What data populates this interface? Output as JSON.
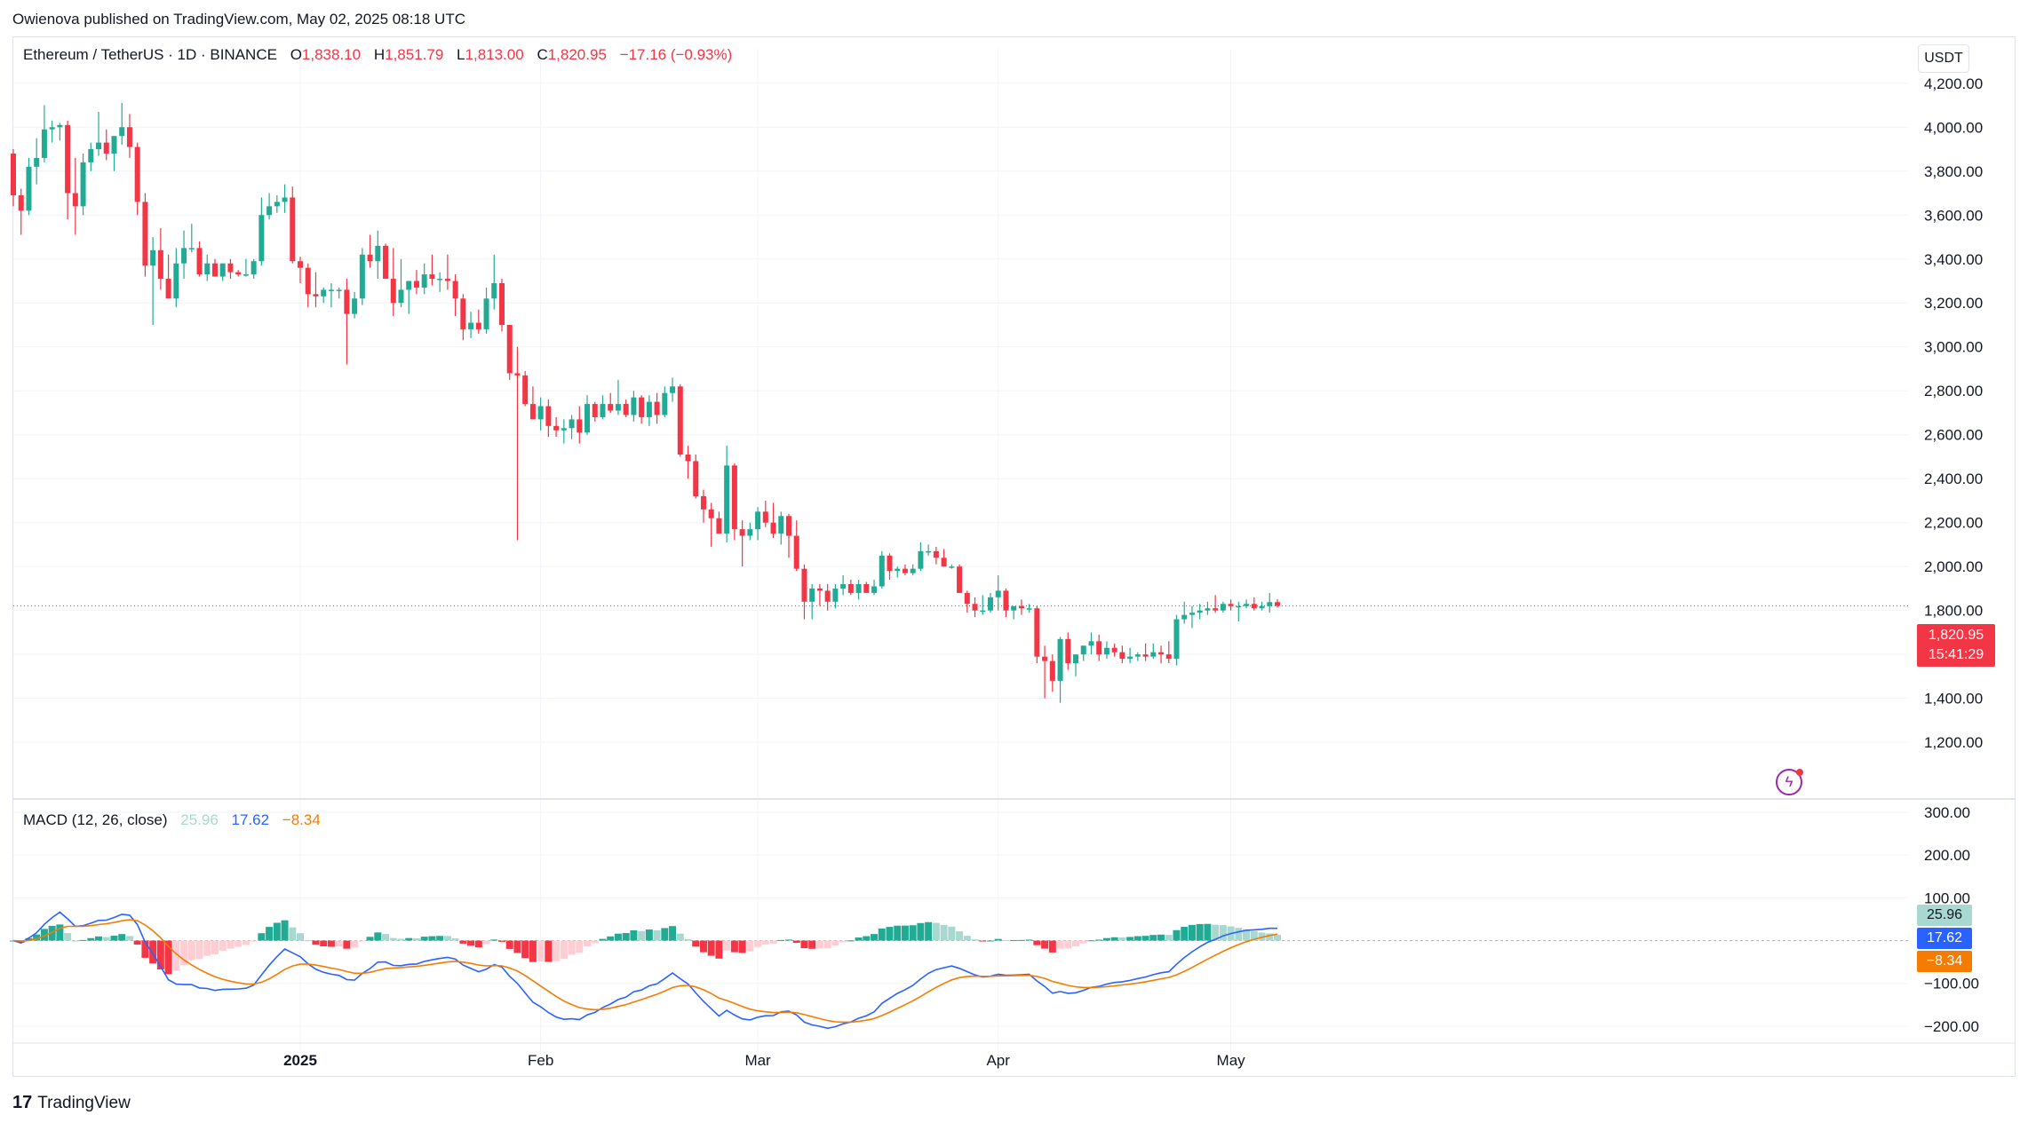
{
  "header": {
    "published": "Owienova published on TradingView.com, May 02, 2025 08:18 UTC"
  },
  "legend": {
    "symbol": "Ethereum / TetherUS · 1D · BINANCE",
    "open_label": "O",
    "open": "1,838.10",
    "high_label": "H",
    "high": "1,851.79",
    "low_label": "L",
    "low": "1,813.00",
    "close_label": "C",
    "close": "1,820.95",
    "change": "−17.16 (−0.93%)"
  },
  "macd_legend": {
    "label": "MACD (12, 26, close)",
    "hist": "25.96",
    "macd": "17.62",
    "signal": "−8.34"
  },
  "currency": "USDT",
  "price_tag": {
    "price": "1,820.95",
    "countdown": "15:41:29"
  },
  "macd_tags": {
    "hist": "25.96",
    "macd": "17.62",
    "signal": "−8.34"
  },
  "colors": {
    "up": "#22ab94",
    "down": "#f23645",
    "macd": "#2962ff",
    "signal": "#f57c00",
    "hist_up": "#22ab94",
    "hist_up_fading": "#a8d8cf",
    "hist_down": "#f23645",
    "hist_down_fading": "#ffcdd2"
  },
  "icons": {
    "bolt": "lightning-icon",
    "brand": "tradingview-logo"
  },
  "brand": {
    "logo": "17",
    "name": "TradingView"
  },
  "chart_data": [
    {
      "type": "candlestick",
      "title": "Ethereum / TetherUS · 1D · BINANCE",
      "ylim": [
        1140,
        4280
      ],
      "y_ticks": [
        "4,200.00",
        "4,000.00",
        "3,800.00",
        "3,600.00",
        "3,400.00",
        "3,200.00",
        "3,000.00",
        "2,800.00",
        "2,600.00",
        "2,400.00",
        "2,200.00",
        "2,000.00",
        "1,800.00",
        "1,600.00",
        "1,400.00",
        "1,200.00"
      ],
      "y_tick_values": [
        4200,
        4000,
        3800,
        3600,
        3400,
        3200,
        3000,
        2800,
        2600,
        2400,
        2200,
        2000,
        1800,
        1600,
        1400,
        1200
      ],
      "x_ticks": [
        {
          "label": "2025",
          "index": 37
        },
        {
          "label": "Feb",
          "index": 68
        },
        {
          "label": "Mar",
          "index": 96
        },
        {
          "label": "Apr",
          "index": 127
        },
        {
          "label": "May",
          "index": 157
        }
      ],
      "last_price": 1820.95,
      "candles": [
        [
          3880,
          3900,
          3640,
          3690
        ],
        [
          3690,
          3720,
          3510,
          3620
        ],
        [
          3620,
          3860,
          3600,
          3820
        ],
        [
          3820,
          3950,
          3740,
          3860
        ],
        [
          3860,
          4100,
          3840,
          3990
        ],
        [
          3990,
          4030,
          3930,
          4000
        ],
        [
          4000,
          4020,
          3940,
          4010
        ],
        [
          4010,
          4030,
          3580,
          3700
        ],
        [
          3700,
          3860,
          3510,
          3640
        ],
        [
          3640,
          3880,
          3600,
          3840
        ],
        [
          3840,
          3930,
          3800,
          3900
        ],
        [
          3900,
          4070,
          3870,
          3930
        ],
        [
          3930,
          3990,
          3850,
          3880
        ],
        [
          3880,
          3960,
          3800,
          3960
        ],
        [
          3960,
          4110,
          3920,
          4000
        ],
        [
          4000,
          4060,
          3860,
          3910
        ],
        [
          3910,
          3930,
          3600,
          3660
        ],
        [
          3660,
          3700,
          3320,
          3370
        ],
        [
          3370,
          3500,
          3100,
          3440
        ],
        [
          3440,
          3540,
          3260,
          3310
        ],
        [
          3310,
          3420,
          3220,
          3220
        ],
        [
          3220,
          3450,
          3180,
          3380
        ],
        [
          3380,
          3530,
          3310,
          3450
        ],
        [
          3450,
          3560,
          3430,
          3450
        ],
        [
          3450,
          3480,
          3320,
          3330
        ],
        [
          3330,
          3420,
          3300,
          3380
        ],
        [
          3380,
          3400,
          3320,
          3320
        ],
        [
          3320,
          3380,
          3300,
          3380
        ],
        [
          3380,
          3400,
          3310,
          3340
        ],
        [
          3340,
          3350,
          3320,
          3330
        ],
        [
          3330,
          3400,
          3320,
          3330
        ],
        [
          3330,
          3400,
          3310,
          3390
        ],
        [
          3390,
          3680,
          3370,
          3600
        ],
        [
          3600,
          3700,
          3580,
          3640
        ],
        [
          3640,
          3690,
          3610,
          3660
        ],
        [
          3660,
          3740,
          3610,
          3680
        ],
        [
          3680,
          3730,
          3380,
          3390
        ],
        [
          3390,
          3410,
          3290,
          3360
        ],
        [
          3360,
          3380,
          3180,
          3240
        ],
        [
          3240,
          3340,
          3180,
          3230
        ],
        [
          3230,
          3270,
          3200,
          3260
        ],
        [
          3260,
          3290,
          3180,
          3260
        ],
        [
          3260,
          3270,
          3220,
          3260
        ],
        [
          3260,
          3310,
          2920,
          3150
        ],
        [
          3150,
          3250,
          3130,
          3220
        ],
        [
          3220,
          3450,
          3190,
          3420
        ],
        [
          3420,
          3510,
          3360,
          3390
        ],
        [
          3390,
          3530,
          3310,
          3460
        ],
        [
          3460,
          3470,
          3310,
          3310
        ],
        [
          3310,
          3450,
          3140,
          3200
        ],
        [
          3200,
          3400,
          3180,
          3260
        ],
        [
          3260,
          3300,
          3150,
          3300
        ],
        [
          3300,
          3350,
          3240,
          3270
        ],
        [
          3270,
          3380,
          3240,
          3330
        ],
        [
          3330,
          3420,
          3280,
          3310
        ],
        [
          3310,
          3340,
          3250,
          3310
        ],
        [
          3310,
          3420,
          3260,
          3300
        ],
        [
          3300,
          3330,
          3140,
          3220
        ],
        [
          3220,
          3240,
          3030,
          3080
        ],
        [
          3080,
          3160,
          3040,
          3110
        ],
        [
          3110,
          3170,
          3060,
          3080
        ],
        [
          3080,
          3270,
          3060,
          3220
        ],
        [
          3220,
          3420,
          3170,
          3290
        ],
        [
          3290,
          3310,
          3070,
          3100
        ],
        [
          3100,
          3100,
          2850,
          2880
        ],
        [
          2880,
          3000,
          2120,
          2870
        ],
        [
          2870,
          2890,
          2730,
          2740
        ],
        [
          2740,
          2820,
          2680,
          2670
        ],
        [
          2670,
          2770,
          2620,
          2730
        ],
        [
          2730,
          2760,
          2590,
          2640
        ],
        [
          2640,
          2680,
          2590,
          2620
        ],
        [
          2620,
          2670,
          2560,
          2630
        ],
        [
          2630,
          2690,
          2580,
          2670
        ],
        [
          2670,
          2730,
          2560,
          2610
        ],
        [
          2610,
          2780,
          2600,
          2740
        ],
        [
          2740,
          2750,
          2660,
          2680
        ],
        [
          2680,
          2780,
          2670,
          2740
        ],
        [
          2740,
          2790,
          2700,
          2710
        ],
        [
          2710,
          2850,
          2690,
          2740
        ],
        [
          2740,
          2760,
          2680,
          2690
        ],
        [
          2690,
          2800,
          2660,
          2770
        ],
        [
          2770,
          2780,
          2650,
          2680
        ],
        [
          2680,
          2780,
          2640,
          2750
        ],
        [
          2750,
          2790,
          2650,
          2690
        ],
        [
          2690,
          2820,
          2680,
          2790
        ],
        [
          2790,
          2860,
          2750,
          2820
        ],
        [
          2820,
          2830,
          2500,
          2510
        ],
        [
          2510,
          2550,
          2400,
          2480
        ],
        [
          2480,
          2510,
          2310,
          2320
        ],
        [
          2320,
          2350,
          2200,
          2260
        ],
        [
          2260,
          2290,
          2090,
          2220
        ],
        [
          2220,
          2250,
          2160,
          2150
        ],
        [
          2150,
          2550,
          2110,
          2460
        ],
        [
          2460,
          2470,
          2120,
          2170
        ],
        [
          2170,
          2210,
          2000,
          2140
        ],
        [
          2140,
          2200,
          2120,
          2170
        ],
        [
          2170,
          2270,
          2120,
          2250
        ],
        [
          2250,
          2300,
          2180,
          2200
        ],
        [
          2200,
          2290,
          2130,
          2150
        ],
        [
          2150,
          2250,
          2100,
          2230
        ],
        [
          2230,
          2240,
          2040,
          2140
        ],
        [
          2140,
          2210,
          1980,
          1990
        ],
        [
          1990,
          2010,
          1760,
          1840
        ],
        [
          1840,
          1920,
          1760,
          1900
        ],
        [
          1900,
          1920,
          1820,
          1890
        ],
        [
          1890,
          1920,
          1800,
          1840
        ],
        [
          1840,
          1920,
          1810,
          1900
        ],
        [
          1900,
          1960,
          1870,
          1920
        ],
        [
          1920,
          1940,
          1870,
          1880
        ],
        [
          1880,
          1940,
          1850,
          1920
        ],
        [
          1920,
          1930,
          1880,
          1880
        ],
        [
          1880,
          1940,
          1870,
          1910
        ],
        [
          1910,
          2070,
          1900,
          2050
        ],
        [
          2050,
          2060,
          1940,
          1980
        ],
        [
          1980,
          2000,
          1950,
          1990
        ],
        [
          1990,
          2010,
          1960,
          1970
        ],
        [
          1970,
          2010,
          1960,
          1990
        ],
        [
          1990,
          2110,
          1980,
          2070
        ],
        [
          2070,
          2100,
          2050,
          2070
        ],
        [
          2070,
          2090,
          2010,
          2040
        ],
        [
          2040,
          2080,
          2000,
          2000
        ],
        [
          2000,
          2010,
          1990,
          2000
        ],
        [
          2000,
          2010,
          1880,
          1880
        ],
        [
          1880,
          1890,
          1790,
          1830
        ],
        [
          1830,
          1860,
          1770,
          1800
        ],
        [
          1800,
          1870,
          1780,
          1800
        ],
        [
          1800,
          1880,
          1790,
          1860
        ],
        [
          1860,
          1960,
          1800,
          1890
        ],
        [
          1890,
          1900,
          1770,
          1800
        ],
        [
          1800,
          1820,
          1760,
          1820
        ],
        [
          1820,
          1850,
          1780,
          1810
        ],
        [
          1810,
          1830,
          1790,
          1810
        ],
        [
          1810,
          1820,
          1560,
          1590
        ],
        [
          1590,
          1640,
          1400,
          1570
        ],
        [
          1570,
          1600,
          1430,
          1480
        ],
        [
          1480,
          1680,
          1380,
          1670
        ],
        [
          1670,
          1700,
          1530,
          1560
        ],
        [
          1560,
          1600,
          1500,
          1600
        ],
        [
          1600,
          1630,
          1570,
          1640
        ],
        [
          1640,
          1700,
          1600,
          1660
        ],
        [
          1660,
          1690,
          1570,
          1600
        ],
        [
          1600,
          1660,
          1580,
          1630
        ],
        [
          1630,
          1650,
          1590,
          1610
        ],
        [
          1610,
          1640,
          1560,
          1580
        ],
        [
          1580,
          1630,
          1560,
          1590
        ],
        [
          1590,
          1610,
          1570,
          1600
        ],
        [
          1600,
          1650,
          1570,
          1590
        ],
        [
          1590,
          1650,
          1580,
          1610
        ],
        [
          1610,
          1640,
          1560,
          1600
        ],
        [
          1600,
          1660,
          1560,
          1580
        ],
        [
          1580,
          1780,
          1550,
          1760
        ],
        [
          1760,
          1840,
          1740,
          1780
        ],
        [
          1780,
          1820,
          1720,
          1790
        ],
        [
          1790,
          1830,
          1760,
          1800
        ],
        [
          1800,
          1840,
          1780,
          1810
        ],
        [
          1810,
          1870,
          1790,
          1800
        ],
        [
          1800,
          1840,
          1790,
          1830
        ],
        [
          1830,
          1850,
          1800,
          1820
        ],
        [
          1820,
          1840,
          1750,
          1820
        ],
        [
          1820,
          1850,
          1810,
          1830
        ],
        [
          1830,
          1860,
          1800,
          1810
        ],
        [
          1810,
          1840,
          1800,
          1820
        ],
        [
          1820,
          1880,
          1790,
          1838
        ],
        [
          1838.1,
          1851.79,
          1813,
          1820.95
        ]
      ]
    },
    {
      "type": "macd",
      "title": "MACD (12, 26, close)",
      "ylim": [
        -250,
        300
      ],
      "y_ticks": [
        "300.00",
        "200.00",
        "100.00",
        "−100.00",
        "−200.00"
      ],
      "y_tick_values": [
        300,
        200,
        100,
        -100,
        -200
      ],
      "last": {
        "hist": 25.96,
        "macd": 17.62,
        "signal": -8.34
      }
    }
  ]
}
